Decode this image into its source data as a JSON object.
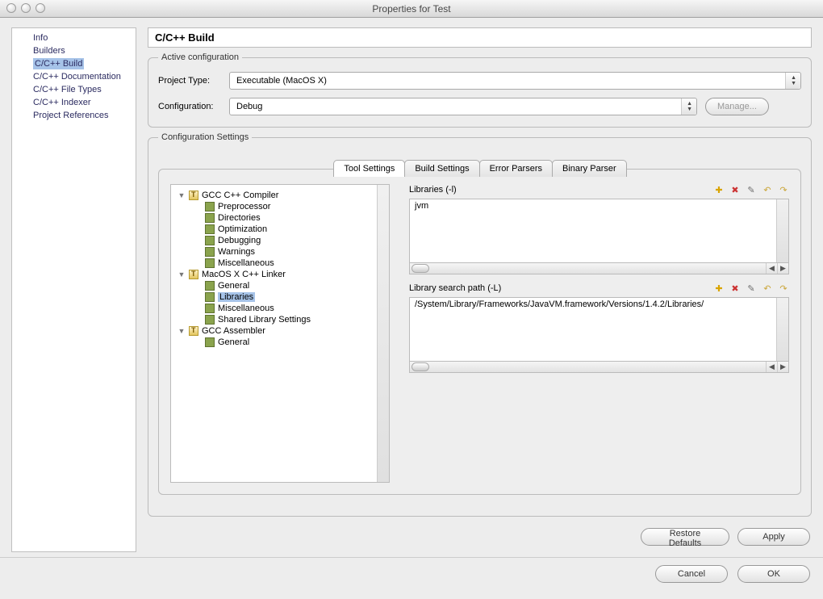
{
  "window": {
    "title": "Properties for Test"
  },
  "sidebar": {
    "items": [
      {
        "label": "Info",
        "selected": false
      },
      {
        "label": "Builders",
        "selected": false
      },
      {
        "label": "C/C++ Build",
        "selected": true
      },
      {
        "label": "C/C++ Documentation",
        "selected": false
      },
      {
        "label": "C/C++ File Types",
        "selected": false
      },
      {
        "label": "C/C++ Indexer",
        "selected": false
      },
      {
        "label": "Project References",
        "selected": false
      }
    ]
  },
  "page": {
    "heading": "C/C++ Build"
  },
  "activeConfig": {
    "legend": "Active configuration",
    "projectTypeLabel": "Project Type:",
    "projectTypeValue": "Executable (MacOS X)",
    "configurationLabel": "Configuration:",
    "configurationValue": "Debug",
    "manageButton": "Manage..."
  },
  "configSettings": {
    "legend": "Configuration Settings",
    "tabs": [
      {
        "label": "Tool Settings",
        "active": true
      },
      {
        "label": "Build Settings",
        "active": false
      },
      {
        "label": "Error Parsers",
        "active": false
      },
      {
        "label": "Binary Parser",
        "active": false
      }
    ],
    "tree": [
      {
        "label": "GCC C++ Compiler",
        "type": "tool",
        "depth": 1,
        "expanded": true
      },
      {
        "label": "Preprocessor",
        "type": "opt",
        "depth": 2
      },
      {
        "label": "Directories",
        "type": "opt",
        "depth": 2
      },
      {
        "label": "Optimization",
        "type": "opt",
        "depth": 2
      },
      {
        "label": "Debugging",
        "type": "opt",
        "depth": 2
      },
      {
        "label": "Warnings",
        "type": "opt",
        "depth": 2
      },
      {
        "label": "Miscellaneous",
        "type": "opt",
        "depth": 2
      },
      {
        "label": "MacOS X C++ Linker",
        "type": "tool",
        "depth": 1,
        "expanded": true
      },
      {
        "label": "General",
        "type": "opt",
        "depth": 2
      },
      {
        "label": "Libraries",
        "type": "opt",
        "depth": 2,
        "selected": true
      },
      {
        "label": "Miscellaneous",
        "type": "opt",
        "depth": 2
      },
      {
        "label": "Shared Library Settings",
        "type": "opt",
        "depth": 2
      },
      {
        "label": "GCC Assembler",
        "type": "tool",
        "depth": 1,
        "expanded": true
      },
      {
        "label": "General",
        "type": "opt",
        "depth": 2
      }
    ],
    "librariesSection": {
      "label": "Libraries (-l)",
      "items": [
        "jvm"
      ]
    },
    "searchPathSection": {
      "label": "Library search path (-L)",
      "items": [
        "/System/Library/Frameworks/JavaVM.framework/Versions/1.4.2/Libraries/"
      ]
    },
    "iconColors": {
      "add": "#d9a400",
      "delete": "#cc3333",
      "edit": "#6e6e6e",
      "up": "#caa63a",
      "down": "#caa63a"
    }
  },
  "buttons": {
    "restoreDefaults": "Restore Defaults",
    "apply": "Apply",
    "cancel": "Cancel",
    "ok": "OK"
  }
}
